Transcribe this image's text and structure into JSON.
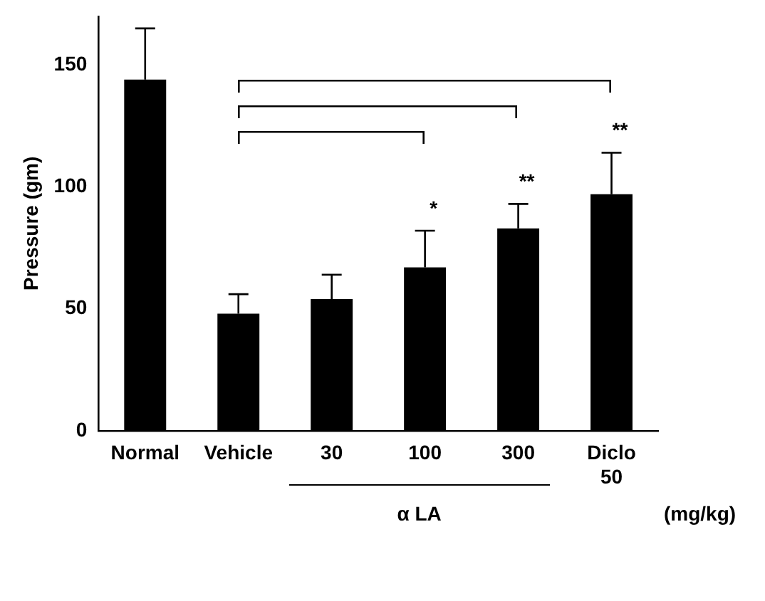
{
  "chart_data": {
    "type": "bar",
    "ylabel": "Pressure (gm)",
    "categories": [
      "Normal",
      "Vehicle",
      "30",
      "100",
      "300",
      "Diclo 50"
    ],
    "values": [
      144,
      48,
      54,
      67,
      83,
      97
    ],
    "errors": [
      [
        144,
        165
      ],
      [
        48,
        56
      ],
      [
        54,
        64
      ],
      [
        67,
        82
      ],
      [
        83,
        93
      ],
      [
        97,
        114
      ]
    ],
    "color": "#000000",
    "ylim": [
      0,
      170
    ],
    "yticks": [
      0,
      50,
      100,
      150
    ],
    "grid": false,
    "legend": false,
    "annotations": [
      {
        "text": "*",
        "x": "100",
        "y": 82
      },
      {
        "text": "**",
        "x": "300",
        "y": 93
      },
      {
        "text": "**",
        "x": "Diclo 50",
        "y": 114
      },
      "α LA",
      "(mg/kg)"
    ]
  }
}
